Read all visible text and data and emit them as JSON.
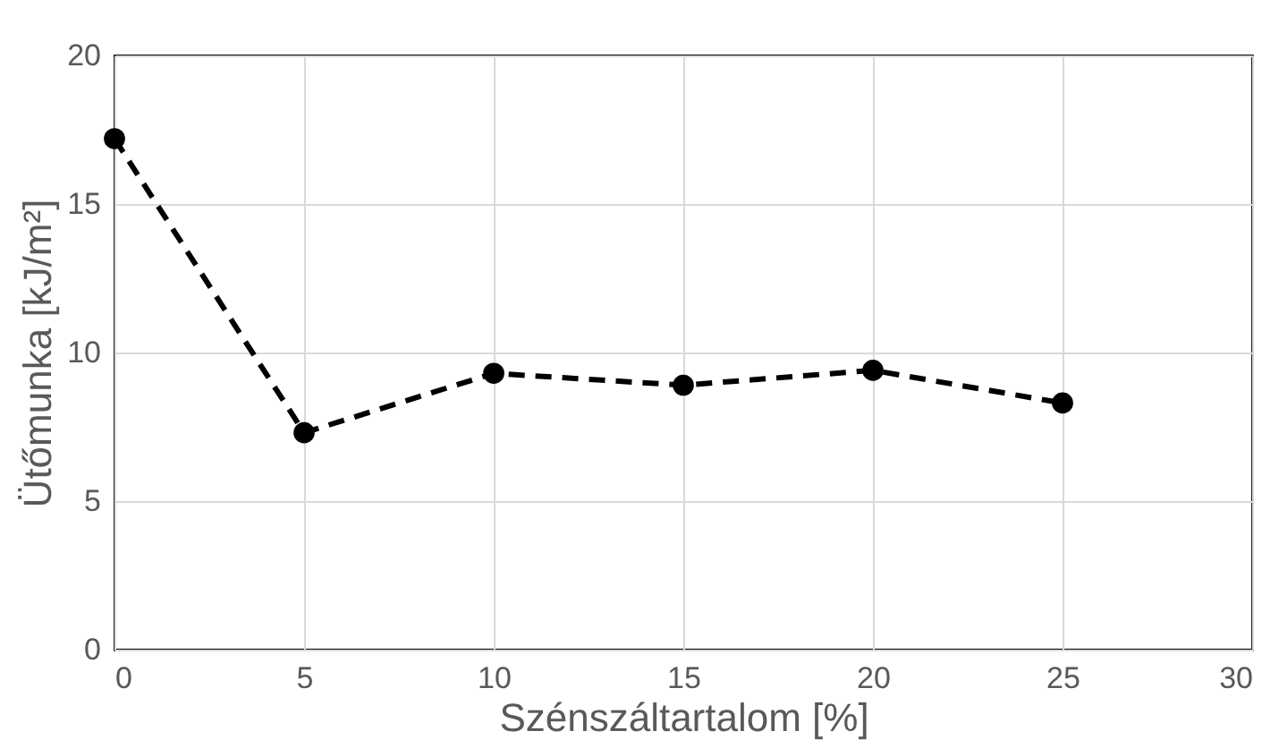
{
  "chart_data": {
    "type": "line",
    "xlabel": "Szénszáltartalom [%]",
    "ylabel": "Ütőmunka [kJ/m²]",
    "x": [
      0,
      5,
      10,
      15,
      20,
      25
    ],
    "series": [
      {
        "color": "#000000",
        "values": [
          17.2,
          7.3,
          9.3,
          8.9,
          9.4,
          8.3
        ]
      }
    ],
    "xlim": [
      0,
      30
    ],
    "xticks": [
      0,
      5,
      10,
      15,
      20,
      25,
      30
    ],
    "ylim": [
      0,
      20
    ],
    "yticks": [
      0,
      5,
      10,
      15,
      20
    ],
    "grid": true,
    "marker": "circle",
    "line_style": "dashed"
  }
}
